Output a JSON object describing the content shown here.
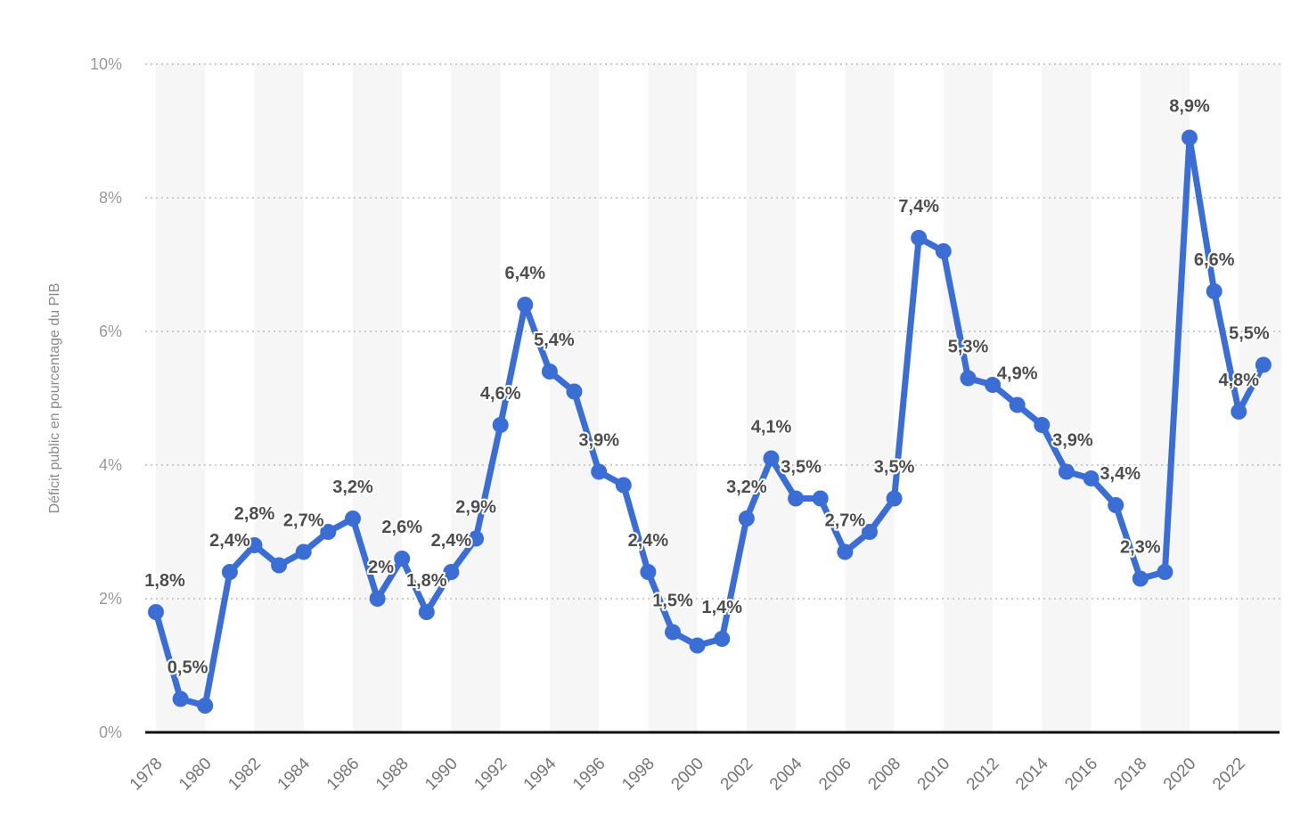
{
  "chart_data": {
    "type": "line",
    "title": "",
    "xlabel": "",
    "ylabel": "Déficit public en pourcentage du PIB",
    "ylim": [
      0,
      10
    ],
    "grid": "horizontal-dotted",
    "legend": "none",
    "background_stripes": "alternating vertical 2-year bands",
    "x": [
      1978,
      1979,
      1980,
      1981,
      1982,
      1983,
      1984,
      1985,
      1986,
      1987,
      1988,
      1989,
      1990,
      1991,
      1992,
      1993,
      1994,
      1995,
      1996,
      1997,
      1998,
      1999,
      2000,
      2001,
      2002,
      2003,
      2004,
      2005,
      2006,
      2007,
      2008,
      2009,
      2010,
      2011,
      2012,
      2013,
      2014,
      2015,
      2016,
      2017,
      2018,
      2019,
      2020,
      2021,
      2022,
      2023
    ],
    "values": [
      1.8,
      0.5,
      0.4,
      2.4,
      2.8,
      2.5,
      2.7,
      3.0,
      3.2,
      2.0,
      2.6,
      1.8,
      2.4,
      2.9,
      4.6,
      6.4,
      5.4,
      5.1,
      3.9,
      3.7,
      2.4,
      1.5,
      1.3,
      1.4,
      3.2,
      4.1,
      3.5,
      3.5,
      2.7,
      3.0,
      3.5,
      7.4,
      7.2,
      5.3,
      5.2,
      4.9,
      4.6,
      3.9,
      3.8,
      3.4,
      2.3,
      2.4,
      8.9,
      6.6,
      4.8,
      5.5
    ],
    "point_labels": [
      "1,8%",
      "0,5%",
      null,
      "2,4%",
      "2,8%",
      null,
      "2,7%",
      null,
      "3,2%",
      "2%",
      "2,6%",
      "1,8%",
      "2,4%",
      "2,9%",
      "4,6%",
      "6,4%",
      "5,4%",
      null,
      "3,9%",
      null,
      "2,4%",
      "1,5%",
      null,
      "1,4%",
      "3,2%",
      "4,1%",
      "3,5%",
      null,
      "2,7%",
      null,
      "3,5%",
      "7,4%",
      null,
      "5,3%",
      null,
      "4,9%",
      null,
      "3,9%",
      null,
      "3,4%",
      "2,3%",
      null,
      "8,9%",
      "6,6%",
      "4,8%",
      "5,5%"
    ],
    "label_dx": {
      "1978": 10,
      "1979": 8,
      "1987": 4,
      "1994": 5,
      "2004": 6,
      "2015": 7,
      "2017": 5,
      "2023": -16
    },
    "x_tick_years": [
      1978,
      1980,
      1982,
      1984,
      1986,
      1988,
      1990,
      1992,
      1994,
      1996,
      1998,
      2000,
      2002,
      2004,
      2006,
      2008,
      2010,
      2012,
      2014,
      2016,
      2018,
      2020,
      2022
    ],
    "y_tick_values": [
      0,
      2,
      4,
      6,
      8,
      10
    ],
    "y_tick_labels": [
      "0%",
      "2%",
      "4%",
      "6%",
      "8%",
      "10%"
    ],
    "colors": {
      "line": "#3a6ed5",
      "marker": "#3a6ed5",
      "point_label": "#4d4d4d",
      "y_tick": "#9a9a9a",
      "x_tick": "#757575",
      "axis_title": "#8a8a8a",
      "gridline": "#cbcbcb",
      "axis_line": "#111111",
      "stripe": "#f6f6f6",
      "background": "#ffffff"
    }
  }
}
